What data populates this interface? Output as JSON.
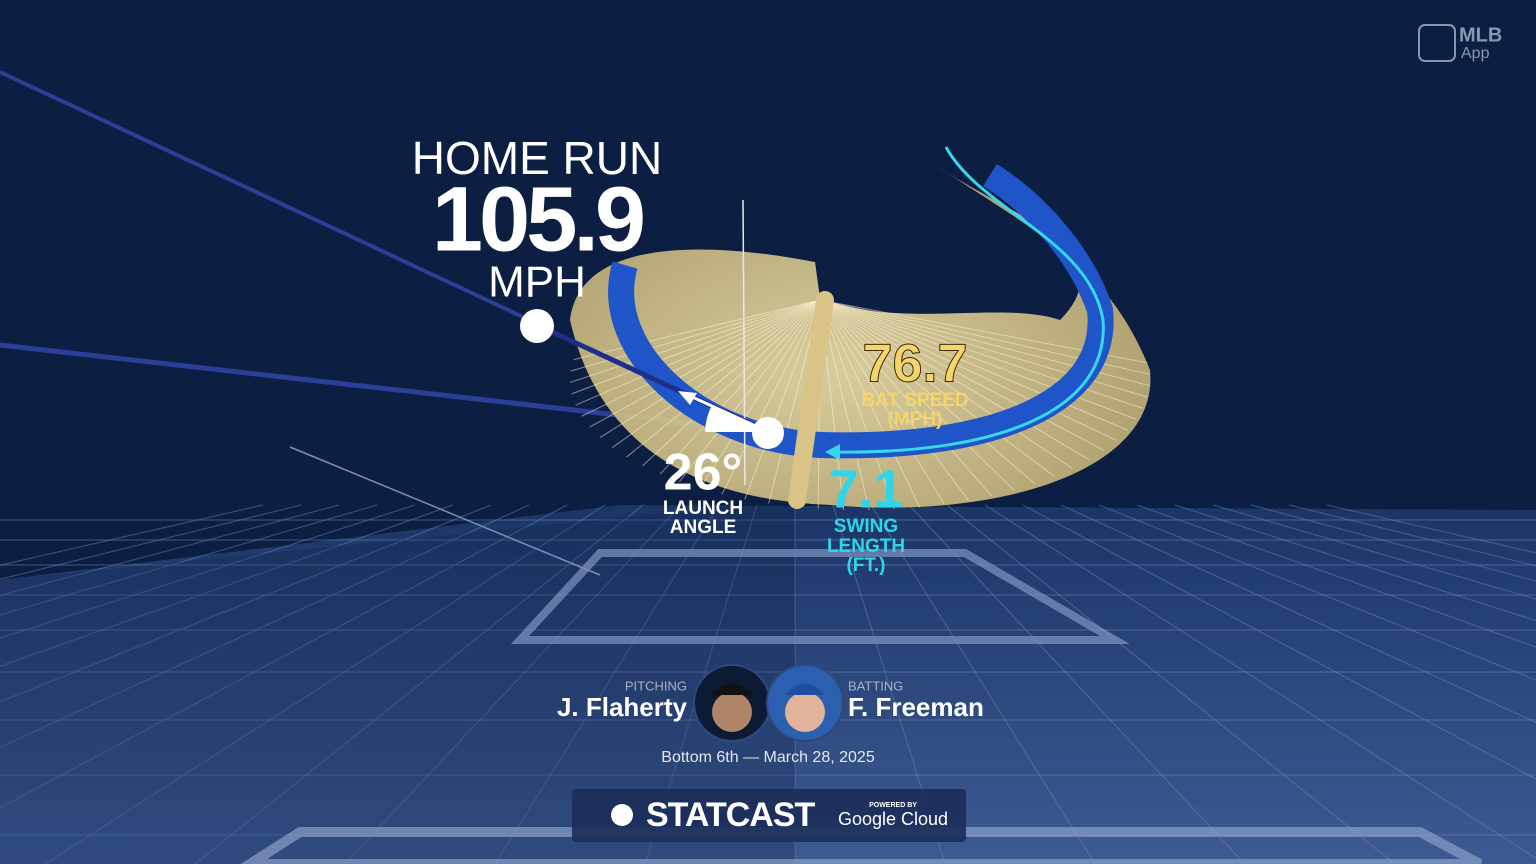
{
  "logo": {
    "brand": "MLB",
    "sub": "App"
  },
  "result": {
    "title": "HOME RUN",
    "exit_velocity": "105.9",
    "unit": "MPH"
  },
  "bat_speed": {
    "value": "76.7",
    "label": "BAT SPEED",
    "unit": "(MPH)"
  },
  "launch_angle": {
    "value": "26°",
    "label_1": "LAUNCH",
    "label_2": "ANGLE"
  },
  "swing_length": {
    "value": "7.1",
    "label_1": "SWING",
    "label_2": "LENGTH",
    "unit": "(FT.)"
  },
  "matchup": {
    "pitcher_role": "PITCHING",
    "pitcher": "J. Flaherty",
    "batter_role": "BATTING",
    "batter": "F. Freeman",
    "context": "Bottom 6th — March 28, 2025"
  },
  "footer": {
    "brand": "STATCAST",
    "powered": "POWERED BY",
    "partner": "Google Cloud"
  }
}
